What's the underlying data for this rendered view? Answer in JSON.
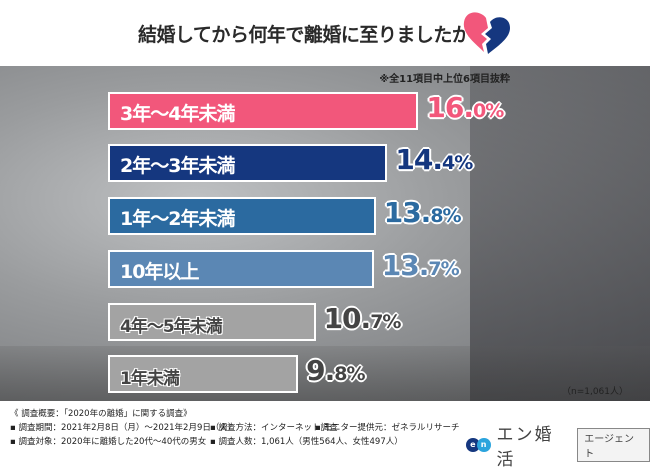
{
  "header": {
    "title": "結婚してから何年で離婚に至りましたか？"
  },
  "note": "※全11項目中上位6項目抜粋",
  "sample": "（n=1,061人）",
  "chart_data": {
    "type": "bar",
    "orientation": "horizontal",
    "title": "結婚してから何年で離婚に至りましたか？",
    "unit": "%",
    "categories": [
      "3年～4年未満",
      "2年～3年未満",
      "1年～2年未満",
      "10年以上",
      "4年～5年未満",
      "1年未満"
    ],
    "values": [
      16.0,
      14.4,
      13.8,
      13.7,
      10.7,
      9.8
    ],
    "labels": [
      {
        "int": "16.",
        "dec": "0%"
      },
      {
        "int": "14.",
        "dec": "4%"
      },
      {
        "int": "13.",
        "dec": "8%"
      },
      {
        "int": "13.",
        "dec": "7%"
      },
      {
        "int": "10.",
        "dec": "7%"
      },
      {
        "int": "9.",
        "dec": "8%"
      }
    ],
    "colors": [
      "#f2577b",
      "#15377f",
      "#2b6aa0",
      "#5b87b4",
      "#a3a3a3",
      "#a3a3a3"
    ],
    "value_colors": [
      "#f2577b",
      "#15377f",
      "#2b6aa0",
      "#5b87b4",
      "#444444",
      "#444444"
    ]
  },
  "footer": {
    "line1": "《 調査概要：「2020年の離婚」に関する調査》",
    "line2a": "▪ 調査期間：2021年2月8日（月）～2021年2月9日（火）",
    "line2b": "▪ 調査方法：インターネット調査",
    "line2c": "▪ モニター提供元：ゼネラルリサーチ",
    "line3a": "▪ 調査対象：2020年に離婚した20代～40代の男女",
    "line3b": "▪ 調査人数：1,061人（男性564人、女性497人）"
  },
  "logo": {
    "e": "e",
    "n": "n",
    "brand": "エン婚活",
    "agent": "エージェント"
  }
}
